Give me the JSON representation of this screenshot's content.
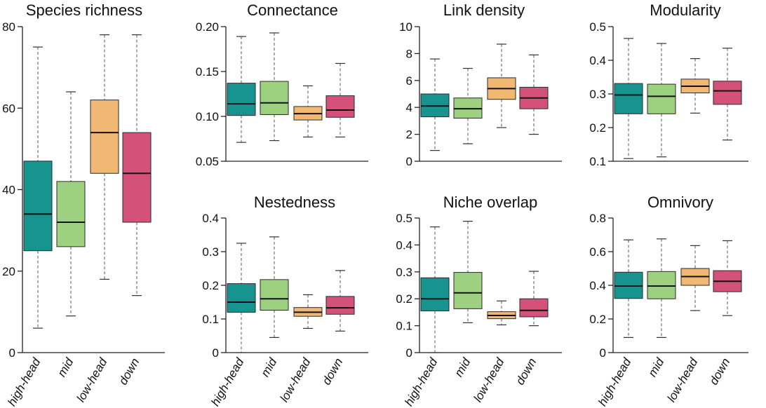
{
  "chart_data": [
    {
      "type": "box",
      "title": "Species richness",
      "categories": [
        "high-head",
        "mid",
        "low-head",
        "down"
      ],
      "colors": [
        "#17948f",
        "#9dd17f",
        "#f0b873",
        "#d4527a"
      ],
      "ylim": [
        0,
        80
      ],
      "yticks": [
        0,
        20,
        40,
        60,
        80
      ],
      "tick_labels": [
        "0",
        "20",
        "40",
        "60",
        "80"
      ],
      "boxes": [
        {
          "min": 6,
          "q1": 25,
          "median": 34,
          "q3": 47,
          "max": 75
        },
        {
          "min": 9,
          "q1": 26,
          "median": 32,
          "q3": 42,
          "max": 64
        },
        {
          "min": 18,
          "q1": 44,
          "median": 54,
          "q3": 62,
          "max": 78
        },
        {
          "min": 14,
          "q1": 32,
          "median": 44,
          "q3": 54,
          "max": 78
        }
      ]
    },
    {
      "type": "box",
      "title": "Connectance",
      "categories": [
        "high-head",
        "mid",
        "low-head",
        "down"
      ],
      "colors": [
        "#17948f",
        "#9dd17f",
        "#f0b873",
        "#d4527a"
      ],
      "ylim": [
        0.05,
        0.2
      ],
      "yticks": [
        0.05,
        0.1,
        0.15,
        0.2
      ],
      "tick_labels": [
        "0.05",
        "0.10",
        "0.15",
        "0.20"
      ],
      "boxes": [
        {
          "min": 0.071,
          "q1": 0.101,
          "median": 0.114,
          "q3": 0.137,
          "max": 0.189
        },
        {
          "min": 0.073,
          "q1": 0.102,
          "median": 0.115,
          "q3": 0.139,
          "max": 0.193
        },
        {
          "min": 0.077,
          "q1": 0.096,
          "median": 0.103,
          "q3": 0.111,
          "max": 0.134
        },
        {
          "min": 0.077,
          "q1": 0.099,
          "median": 0.107,
          "q3": 0.123,
          "max": 0.159
        }
      ]
    },
    {
      "type": "box",
      "title": "Link density",
      "categories": [
        "high-head",
        "mid",
        "low-head",
        "down"
      ],
      "colors": [
        "#17948f",
        "#9dd17f",
        "#f0b873",
        "#d4527a"
      ],
      "ylim": [
        0,
        10
      ],
      "yticks": [
        0,
        2,
        4,
        6,
        8,
        10
      ],
      "tick_labels": [
        "0",
        "2",
        "4",
        "6",
        "8",
        "10"
      ],
      "boxes": [
        {
          "min": 0.8,
          "q1": 3.3,
          "median": 4.1,
          "q3": 5.0,
          "max": 7.6
        },
        {
          "min": 1.3,
          "q1": 3.2,
          "median": 3.9,
          "q3": 4.7,
          "max": 6.9
        },
        {
          "min": 2.5,
          "q1": 4.6,
          "median": 5.4,
          "q3": 6.2,
          "max": 8.7
        },
        {
          "min": 2.0,
          "q1": 3.9,
          "median": 4.7,
          "q3": 5.5,
          "max": 7.9
        }
      ]
    },
    {
      "type": "box",
      "title": "Modularity",
      "categories": [
        "high-head",
        "mid",
        "low-head",
        "down"
      ],
      "colors": [
        "#17948f",
        "#9dd17f",
        "#f0b873",
        "#d4527a"
      ],
      "ylim": [
        0.1,
        0.5
      ],
      "yticks": [
        0.1,
        0.2,
        0.3,
        0.4,
        0.5
      ],
      "tick_labels": [
        "0.1",
        "0.2",
        "0.3",
        "0.4",
        "0.5"
      ],
      "boxes": [
        {
          "min": 0.108,
          "q1": 0.241,
          "median": 0.297,
          "q3": 0.331,
          "max": 0.465
        },
        {
          "min": 0.113,
          "q1": 0.241,
          "median": 0.293,
          "q3": 0.329,
          "max": 0.45
        },
        {
          "min": 0.243,
          "q1": 0.303,
          "median": 0.323,
          "q3": 0.344,
          "max": 0.405
        },
        {
          "min": 0.163,
          "q1": 0.269,
          "median": 0.309,
          "q3": 0.338,
          "max": 0.436
        }
      ]
    },
    {
      "type": "box",
      "title": "Nestedness",
      "categories": [
        "high-head",
        "mid",
        "low-head",
        "down"
      ],
      "colors": [
        "#17948f",
        "#9dd17f",
        "#f0b873",
        "#d4527a"
      ],
      "ylim": [
        0,
        0.4
      ],
      "yticks": [
        0,
        0.1,
        0.2,
        0.3,
        0.4
      ],
      "tick_labels": [
        "0",
        "0.1",
        "0.2",
        "0.3",
        "0.4"
      ],
      "boxes": [
        {
          "min": 0.0,
          "q1": 0.12,
          "median": 0.15,
          "q3": 0.205,
          "max": 0.325
        },
        {
          "min": 0.045,
          "q1": 0.126,
          "median": 0.16,
          "q3": 0.217,
          "max": 0.344
        },
        {
          "min": 0.072,
          "q1": 0.108,
          "median": 0.12,
          "q3": 0.134,
          "max": 0.172
        },
        {
          "min": 0.064,
          "q1": 0.114,
          "median": 0.133,
          "q3": 0.167,
          "max": 0.244
        }
      ]
    },
    {
      "type": "box",
      "title": "Niche overlap",
      "categories": [
        "high-head",
        "mid",
        "low-head",
        "down"
      ],
      "colors": [
        "#17948f",
        "#9dd17f",
        "#f0b873",
        "#d4527a"
      ],
      "ylim": [
        0,
        0.5
      ],
      "yticks": [
        0,
        0.1,
        0.2,
        0.3,
        0.4,
        0.5
      ],
      "tick_labels": [
        "0",
        "0.1",
        "0.2",
        "0.3",
        "0.4",
        "0.5"
      ],
      "boxes": [
        {
          "min": 0.0,
          "q1": 0.155,
          "median": 0.2,
          "q3": 0.278,
          "max": 0.467
        },
        {
          "min": 0.111,
          "q1": 0.163,
          "median": 0.222,
          "q3": 0.298,
          "max": 0.488
        },
        {
          "min": 0.103,
          "q1": 0.126,
          "median": 0.138,
          "q3": 0.152,
          "max": 0.192
        },
        {
          "min": 0.1,
          "q1": 0.133,
          "median": 0.157,
          "q3": 0.2,
          "max": 0.302
        }
      ]
    },
    {
      "type": "box",
      "title": "Omnivory",
      "categories": [
        "high-head",
        "mid",
        "low-head",
        "down"
      ],
      "colors": [
        "#17948f",
        "#9dd17f",
        "#f0b873",
        "#d4527a"
      ],
      "ylim": [
        0,
        0.8
      ],
      "yticks": [
        0,
        0.2,
        0.4,
        0.6,
        0.8
      ],
      "tick_labels": [
        "0",
        "0.2",
        "0.4",
        "0.6",
        "0.8"
      ],
      "boxes": [
        {
          "min": 0.09,
          "q1": 0.322,
          "median": 0.396,
          "q3": 0.478,
          "max": 0.67
        },
        {
          "min": 0.09,
          "q1": 0.32,
          "median": 0.396,
          "q3": 0.482,
          "max": 0.676
        },
        {
          "min": 0.25,
          "q1": 0.4,
          "median": 0.452,
          "q3": 0.5,
          "max": 0.636
        },
        {
          "min": 0.22,
          "q1": 0.362,
          "median": 0.424,
          "q3": 0.487,
          "max": 0.665
        }
      ]
    }
  ]
}
